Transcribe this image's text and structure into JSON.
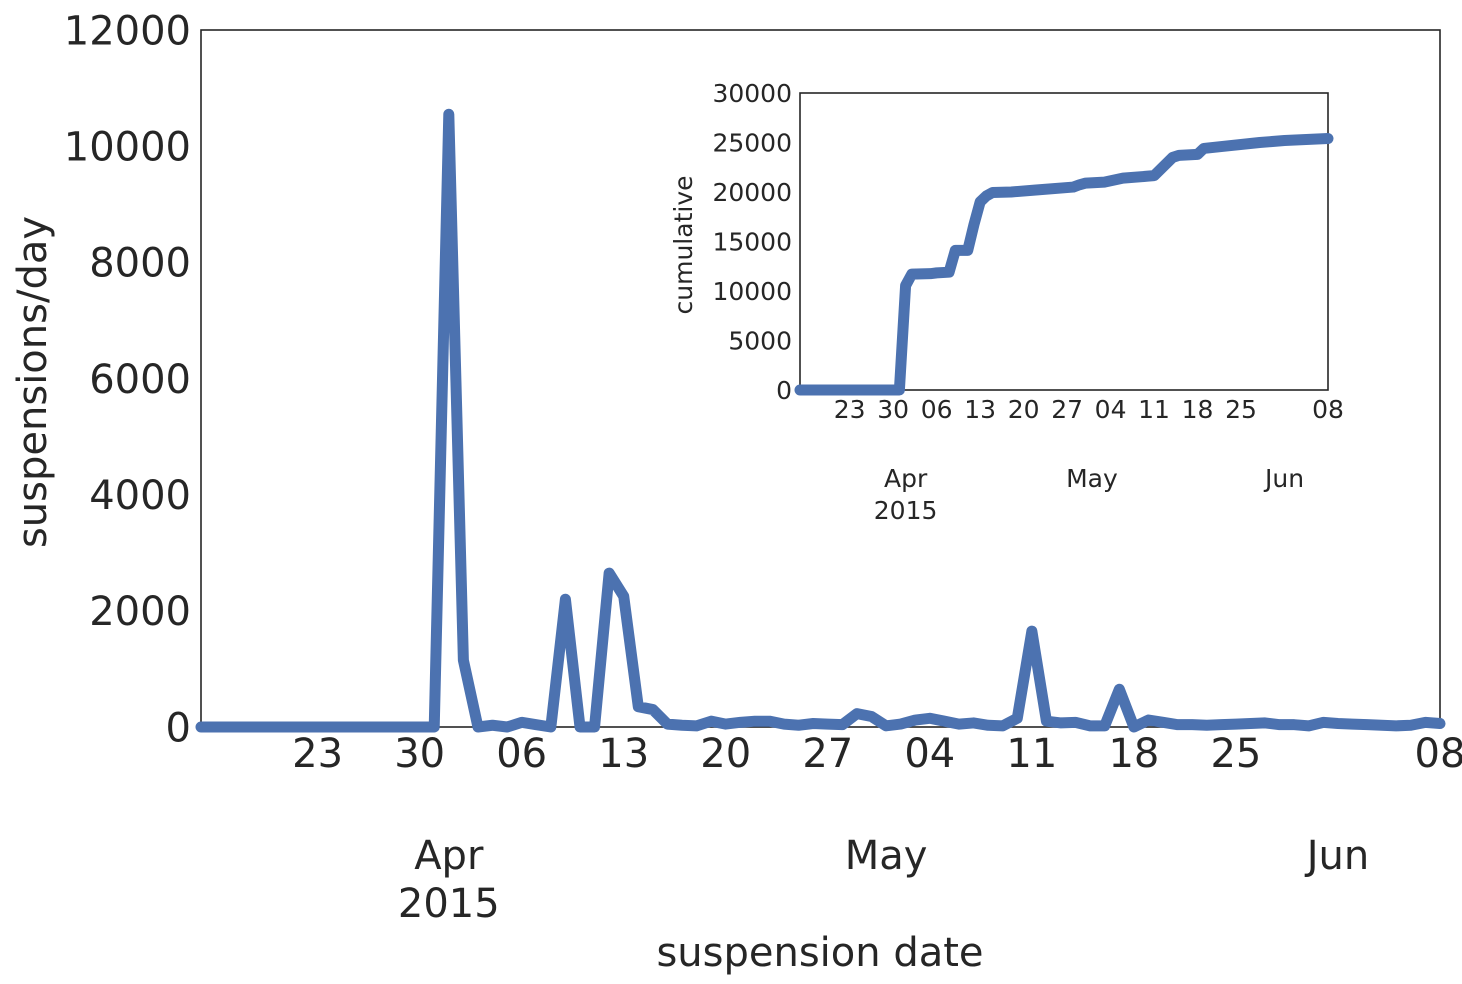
{
  "chart_data": [
    {
      "type": "line",
      "xlabel": "suspension date",
      "ylabel": "suspensions/day",
      "ylim": [
        0,
        12000
      ],
      "xlim": [
        "2015-03-15",
        "2015-06-08"
      ],
      "y_ticks": [
        "0",
        "2000",
        "4000",
        "6000",
        "8000",
        "10000",
        "12000"
      ],
      "x_ticks": [
        {
          "date": "2015-03-23",
          "label": "23"
        },
        {
          "date": "2015-03-30",
          "label": "30"
        },
        {
          "date": "2015-04-06",
          "label": "06"
        },
        {
          "date": "2015-04-13",
          "label": "13"
        },
        {
          "date": "2015-04-20",
          "label": "20"
        },
        {
          "date": "2015-04-27",
          "label": "27"
        },
        {
          "date": "2015-05-04",
          "label": "04"
        },
        {
          "date": "2015-05-11",
          "label": "11"
        },
        {
          "date": "2015-05-18",
          "label": "18"
        },
        {
          "date": "2015-05-25",
          "label": "25"
        },
        {
          "date": "2015-06-08",
          "label": "08"
        }
      ],
      "month_labels": [
        {
          "date": "2015-04-01",
          "label": "Apr",
          "sub": "2015"
        },
        {
          "date": "2015-05-01",
          "label": "May",
          "sub": ""
        },
        {
          "date": "2015-06-01",
          "label": "Jun",
          "sub": ""
        }
      ],
      "grid": false,
      "color": "#4c72b0",
      "series": [
        {
          "x": [
            "2015-03-15",
            "2015-03-30",
            "2015-03-31",
            "2015-04-01",
            "2015-04-02",
            "2015-04-03",
            "2015-04-04",
            "2015-04-05",
            "2015-04-06",
            "2015-04-07",
            "2015-04-08",
            "2015-04-09",
            "2015-04-10",
            "2015-04-11",
            "2015-04-12",
            "2015-04-13",
            "2015-04-14",
            "2015-04-15",
            "2015-04-16",
            "2015-04-17",
            "2015-04-18",
            "2015-04-19",
            "2015-04-20",
            "2015-04-21",
            "2015-04-22",
            "2015-04-23",
            "2015-04-24",
            "2015-04-25",
            "2015-04-26",
            "2015-04-27",
            "2015-04-28",
            "2015-04-29",
            "2015-04-30",
            "2015-05-01",
            "2015-05-02",
            "2015-05-03",
            "2015-05-04",
            "2015-05-05",
            "2015-05-06",
            "2015-05-07",
            "2015-05-08",
            "2015-05-09",
            "2015-05-10",
            "2015-05-11",
            "2015-05-12",
            "2015-05-13",
            "2015-05-14",
            "2015-05-15",
            "2015-05-16",
            "2015-05-17",
            "2015-05-18",
            "2015-05-19",
            "2015-05-20",
            "2015-05-21",
            "2015-05-22",
            "2015-05-23",
            "2015-05-24",
            "2015-05-25",
            "2015-05-26",
            "2015-05-27",
            "2015-05-28",
            "2015-05-29",
            "2015-05-30",
            "2015-05-31",
            "2015-06-01",
            "2015-06-02",
            "2015-06-03",
            "2015-06-04",
            "2015-06-05",
            "2015-06-06",
            "2015-06-07",
            "2015-06-08"
          ],
          "values": [
            0,
            0,
            0,
            10550,
            1150,
            0,
            30,
            0,
            80,
            40,
            0,
            2200,
            0,
            0,
            2650,
            2250,
            350,
            300,
            50,
            30,
            20,
            100,
            50,
            80,
            100,
            100,
            50,
            30,
            60,
            50,
            40,
            230,
            180,
            20,
            50,
            120,
            150,
            100,
            50,
            70,
            30,
            20,
            150,
            1650,
            100,
            70,
            80,
            20,
            20,
            650,
            0,
            120,
            80,
            40,
            40,
            30,
            40,
            50,
            60,
            70,
            40,
            40,
            20,
            80,
            60,
            50,
            40,
            30,
            20,
            30,
            80,
            60
          ]
        }
      ]
    },
    {
      "type": "line",
      "xlabel": "",
      "ylabel": "cumulative",
      "ylim": [
        0,
        30000
      ],
      "xlim": [
        "2015-03-15",
        "2015-06-08"
      ],
      "y_ticks": [
        "0",
        "5000",
        "10000",
        "15000",
        "20000",
        "25000",
        "30000"
      ],
      "x_ticks": [
        {
          "date": "2015-03-23",
          "label": "23"
        },
        {
          "date": "2015-03-30",
          "label": "30"
        },
        {
          "date": "2015-04-06",
          "label": "06"
        },
        {
          "date": "2015-04-13",
          "label": "13"
        },
        {
          "date": "2015-04-20",
          "label": "20"
        },
        {
          "date": "2015-04-27",
          "label": "27"
        },
        {
          "date": "2015-05-04",
          "label": "04"
        },
        {
          "date": "2015-05-11",
          "label": "11"
        },
        {
          "date": "2015-05-18",
          "label": "18"
        },
        {
          "date": "2015-05-25",
          "label": "25"
        },
        {
          "date": "2015-06-08",
          "label": "08"
        }
      ],
      "month_labels": [
        {
          "date": "2015-04-01",
          "label": "Apr",
          "sub": "2015"
        },
        {
          "date": "2015-05-01",
          "label": "May",
          "sub": ""
        },
        {
          "date": "2015-06-01",
          "label": "Jun",
          "sub": ""
        }
      ],
      "grid": false,
      "color": "#4c72b0",
      "series": [
        {
          "x": [
            "2015-03-15",
            "2015-03-31",
            "2015-04-01",
            "2015-04-02",
            "2015-04-05",
            "2015-04-06",
            "2015-04-08",
            "2015-04-09",
            "2015-04-11",
            "2015-04-12",
            "2015-04-13",
            "2015-04-14",
            "2015-04-15",
            "2015-04-18",
            "2015-04-22",
            "2015-04-28",
            "2015-04-29",
            "2015-04-30",
            "2015-05-03",
            "2015-05-06",
            "2015-05-10",
            "2015-05-11",
            "2015-05-14",
            "2015-05-15",
            "2015-05-18",
            "2015-05-19",
            "2015-05-22",
            "2015-05-28",
            "2015-06-01",
            "2015-06-08"
          ],
          "values": [
            0,
            0,
            10550,
            11700,
            11750,
            11830,
            11900,
            14100,
            14100,
            16700,
            19000,
            19600,
            19950,
            20000,
            20200,
            20500,
            20730,
            20900,
            21000,
            21400,
            21600,
            21650,
            23500,
            23700,
            23800,
            24400,
            24600,
            25000,
            25200,
            25400
          ]
        }
      ]
    }
  ]
}
